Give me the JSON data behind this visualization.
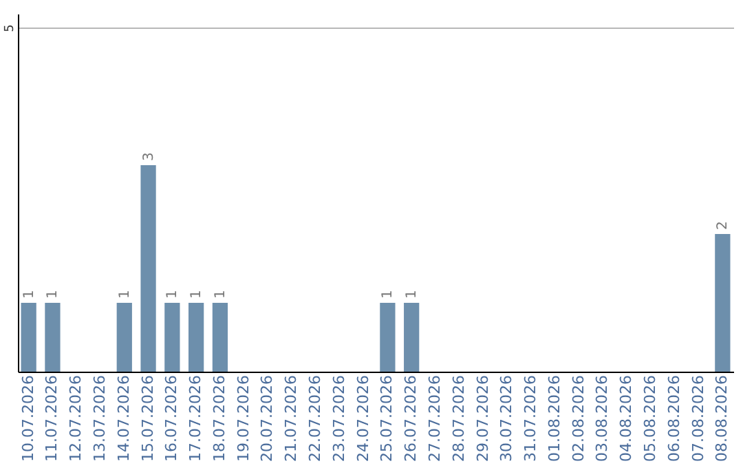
{
  "chart_data": {
    "type": "bar",
    "categories": [
      "10.07.2026",
      "11.07.2026",
      "12.07.2026",
      "13.07.2026",
      "14.07.2026",
      "15.07.2026",
      "16.07.2026",
      "17.07.2026",
      "18.07.2026",
      "19.07.2026",
      "20.07.2026",
      "21.07.2026",
      "22.07.2026",
      "23.07.2026",
      "24.07.2026",
      "25.07.2026",
      "26.07.2026",
      "27.07.2026",
      "28.07.2026",
      "29.07.2026",
      "30.07.2026",
      "31.07.2026",
      "01.08.2026",
      "02.08.2026",
      "03.08.2026",
      "04.08.2026",
      "05.08.2026",
      "06.08.2026",
      "07.08.2026",
      "08.08.2026"
    ],
    "values": [
      1,
      1,
      0,
      0,
      1,
      3,
      1,
      1,
      1,
      0,
      0,
      0,
      0,
      0,
      0,
      1,
      1,
      0,
      0,
      0,
      0,
      0,
      0,
      0,
      0,
      0,
      0,
      0,
      0,
      2
    ],
    "value_labels": [
      "1",
      "1",
      null,
      null,
      "1",
      "3",
      "1",
      "1",
      "1",
      null,
      null,
      null,
      null,
      null,
      null,
      "1",
      "1",
      null,
      null,
      null,
      null,
      null,
      null,
      null,
      null,
      null,
      null,
      null,
      null,
      "2"
    ],
    "color": "#6d8fac",
    "ylim": [
      0,
      5.2
    ],
    "yticks": [
      5
    ],
    "grid": "y"
  }
}
